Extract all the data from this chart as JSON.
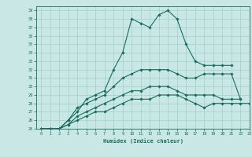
{
  "xlabel": "Humidex (Indice chaleur)",
  "ylabel": "",
  "xlim": [
    -0.5,
    23
  ],
  "ylim": [
    25,
    39.5
  ],
  "xticks": [
    0,
    1,
    2,
    3,
    4,
    5,
    6,
    7,
    8,
    9,
    10,
    11,
    12,
    13,
    14,
    15,
    16,
    17,
    18,
    19,
    20,
    21,
    22,
    23
  ],
  "yticks": [
    25,
    26,
    27,
    28,
    29,
    30,
    31,
    32,
    33,
    34,
    35,
    36,
    37,
    38,
    39
  ],
  "bg_color": "#c9e8e5",
  "line_color": "#1a6b60",
  "grid_color": "#9fcfcc",
  "curves": [
    {
      "x": [
        0,
        1,
        2,
        3,
        4,
        5,
        6,
        7,
        8,
        9,
        10,
        11,
        12,
        13,
        14,
        15,
        16,
        17,
        18,
        19,
        20,
        21
      ],
      "y": [
        25,
        25,
        25,
        26,
        27,
        28.5,
        29,
        29.5,
        32,
        34,
        38,
        37.5,
        37,
        38.5,
        39,
        38,
        35,
        33,
        32.5,
        32.5,
        32.5,
        32.5
      ],
      "marker": "D",
      "markersize": 1.8
    },
    {
      "x": [
        0,
        1,
        2,
        3,
        4,
        5,
        6,
        7,
        8,
        9,
        10,
        11,
        12,
        13,
        14,
        15,
        16,
        17,
        18,
        19,
        20,
        21,
        22
      ],
      "y": [
        25,
        25,
        25,
        26,
        27.5,
        28,
        28.5,
        29,
        30,
        31,
        31.5,
        32,
        32,
        32,
        32,
        31.5,
        31,
        31,
        31.5,
        31.5,
        31.5,
        31.5,
        28.5
      ],
      "marker": "D",
      "markersize": 1.8
    },
    {
      "x": [
        0,
        1,
        2,
        3,
        4,
        5,
        6,
        7,
        8,
        9,
        10,
        11,
        12,
        13,
        14,
        15,
        16,
        17,
        18,
        19,
        20,
        21,
        22
      ],
      "y": [
        25,
        25,
        25,
        25.5,
        26.5,
        27,
        27.5,
        28,
        28.5,
        29,
        29.5,
        29.5,
        30,
        30,
        30,
        29.5,
        29,
        29,
        29,
        29,
        28.5,
        28.5,
        28.5
      ],
      "marker": "D",
      "markersize": 1.8
    },
    {
      "x": [
        0,
        1,
        2,
        3,
        4,
        5,
        6,
        7,
        8,
        9,
        10,
        11,
        12,
        13,
        14,
        15,
        16,
        17,
        18,
        19,
        20,
        21,
        22,
        23
      ],
      "y": [
        25,
        25,
        25,
        25.5,
        26,
        26.5,
        27,
        27,
        27.5,
        28,
        28.5,
        28.5,
        28.5,
        29,
        29,
        29,
        28.5,
        28,
        27.5,
        28,
        28,
        28,
        28,
        28
      ],
      "marker": "D",
      "markersize": 1.8
    }
  ]
}
